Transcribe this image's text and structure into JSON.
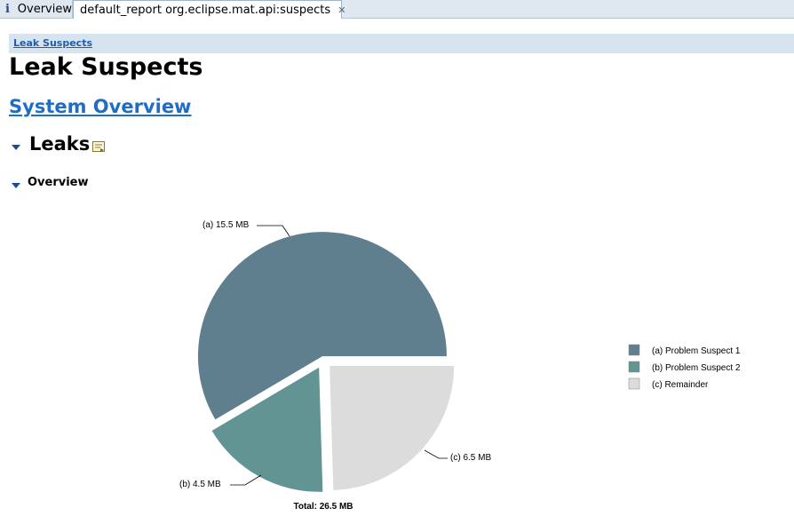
{
  "tabs": [
    {
      "label": "Overview",
      "icon": "info-icon"
    },
    {
      "label": "default_report  org.eclipse.mat.api:suspects",
      "icon": "database-report-icon",
      "closable": true
    }
  ],
  "breadcrumb": "Leak Suspects",
  "page_title": "Leak Suspects",
  "system_overview_link": "System Overview",
  "leaks_heading": "Leaks",
  "overview_heading": "Overview",
  "colors": {
    "suspect1": "#607f8e",
    "suspect2": "#629494",
    "remainder": "#dcdcdc",
    "link": "#1f6ec4"
  },
  "chart_data": {
    "type": "pie",
    "slices": [
      {
        "label": "(a)  15.5 MB",
        "value": 15.5,
        "legend": "(a)  Problem Suspect 1",
        "color": "#607f8e"
      },
      {
        "label": "(b)  4.5 MB",
        "value": 4.5,
        "legend": "(b)  Problem Suspect 2",
        "color": "#629494"
      },
      {
        "label": "(c)  6.5 MB",
        "value": 6.5,
        "legend": "(c)  Remainder",
        "color": "#dcdcdc"
      }
    ],
    "total_label": "Total: 26.5 MB",
    "legend_placement": "right"
  }
}
